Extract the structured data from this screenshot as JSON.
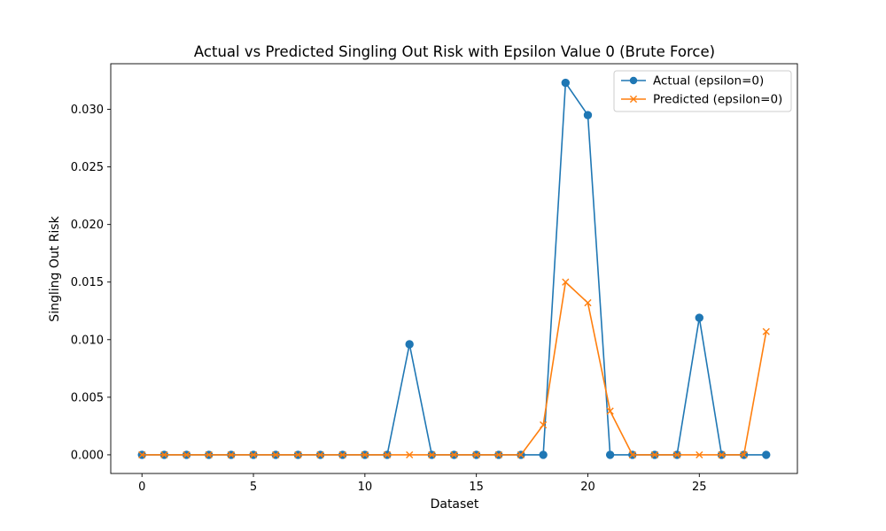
{
  "chart_data": {
    "type": "line",
    "title": "Actual vs Predicted Singling Out Risk with Epsilon Value 0 (Brute Force)",
    "xlabel": "Dataset",
    "ylabel": "Singling Out Risk",
    "xlim": [
      -1.4,
      29.4
    ],
    "ylim": [
      -0.00162,
      0.03396
    ],
    "xticks": [
      0,
      5,
      10,
      15,
      20,
      25
    ],
    "xtick_labels": [
      "0",
      "5",
      "10",
      "15",
      "20",
      "25"
    ],
    "yticks": [
      0.0,
      0.005,
      0.01,
      0.015,
      0.02,
      0.025,
      0.03
    ],
    "ytick_labels": [
      "0.000",
      "0.005",
      "0.010",
      "0.015",
      "0.020",
      "0.025",
      "0.030"
    ],
    "grid": false,
    "legend_position": "top-right",
    "x": [
      0,
      1,
      2,
      3,
      4,
      5,
      6,
      7,
      8,
      9,
      10,
      11,
      12,
      13,
      14,
      15,
      16,
      17,
      18,
      19,
      20,
      21,
      22,
      23,
      24,
      25,
      26,
      27,
      28
    ],
    "series": [
      {
        "name": "Actual (epsilon=0)",
        "color": "#1f77b4",
        "marker": "circle",
        "values": [
          0,
          0,
          0,
          0,
          0,
          0,
          0,
          0,
          0,
          0,
          0,
          0,
          0.0096,
          0,
          0,
          0,
          0,
          0,
          0,
          0.0323,
          0.0295,
          0,
          0,
          0,
          0,
          0.0119,
          0,
          0,
          0
        ]
      },
      {
        "name": "Predicted (epsilon=0)",
        "color": "#ff7f0e",
        "marker": "x",
        "values": [
          0,
          0,
          0,
          0,
          0,
          0,
          0,
          0,
          0,
          0,
          0,
          0,
          0,
          0,
          0,
          0,
          0,
          0,
          0.0026,
          0.015,
          0.0132,
          0.0038,
          0,
          0,
          0,
          0,
          0,
          0,
          0.0107
        ]
      }
    ]
  }
}
